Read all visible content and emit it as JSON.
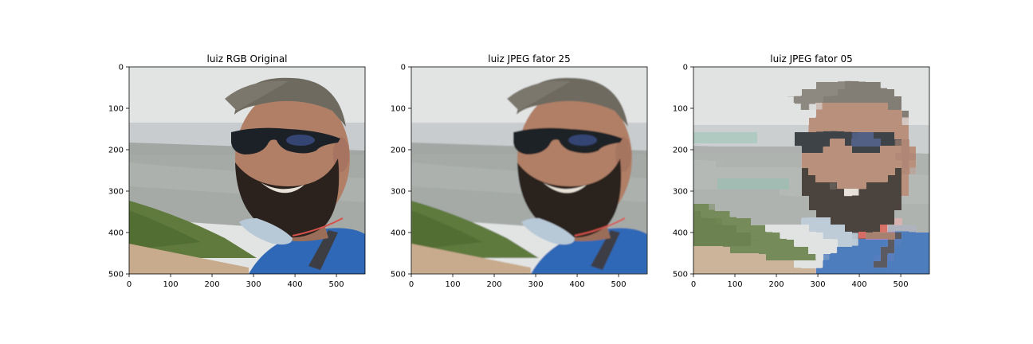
{
  "chart_data": [
    {
      "type": "image",
      "title": "luiz RGB Original",
      "quality": "original",
      "xlim": [
        0,
        569
      ],
      "ylim": [
        500,
        0
      ],
      "x_ticks": [
        0,
        100,
        200,
        300,
        400,
        500
      ],
      "y_ticks": [
        0,
        100,
        200,
        300,
        400,
        500
      ]
    },
    {
      "type": "image",
      "title": "luiz JPEG fator 25",
      "quality": "jpeg-25",
      "xlim": [
        0,
        569
      ],
      "ylim": [
        500,
        0
      ],
      "x_ticks": [
        0,
        100,
        200,
        300,
        400,
        500
      ],
      "y_ticks": [
        0,
        100,
        200,
        300,
        400,
        500
      ]
    },
    {
      "type": "image",
      "title": "luiz JPEG fator 05",
      "quality": "jpeg-05",
      "xlim": [
        0,
        569
      ],
      "ylim": [
        500,
        0
      ],
      "x_ticks": [
        0,
        100,
        200,
        300,
        400,
        500
      ],
      "y_ticks": [
        0,
        100,
        200,
        300,
        400,
        500
      ]
    }
  ],
  "image_content": {
    "subject": "selfie of bearded man with cap and sunglasses",
    "colors": {
      "sky": "#e2e4e4",
      "haze": "#c9ccce",
      "city": "#9ea3a0",
      "hill": "#5f7a3c",
      "ground": "#c7ab8c",
      "skin": "#b07f66",
      "beard": "#2c221d",
      "cap": "#6e6a60",
      "glasses": "#1c2128",
      "shirt": "#2f68b6",
      "mask": "#b7c8d6"
    }
  }
}
